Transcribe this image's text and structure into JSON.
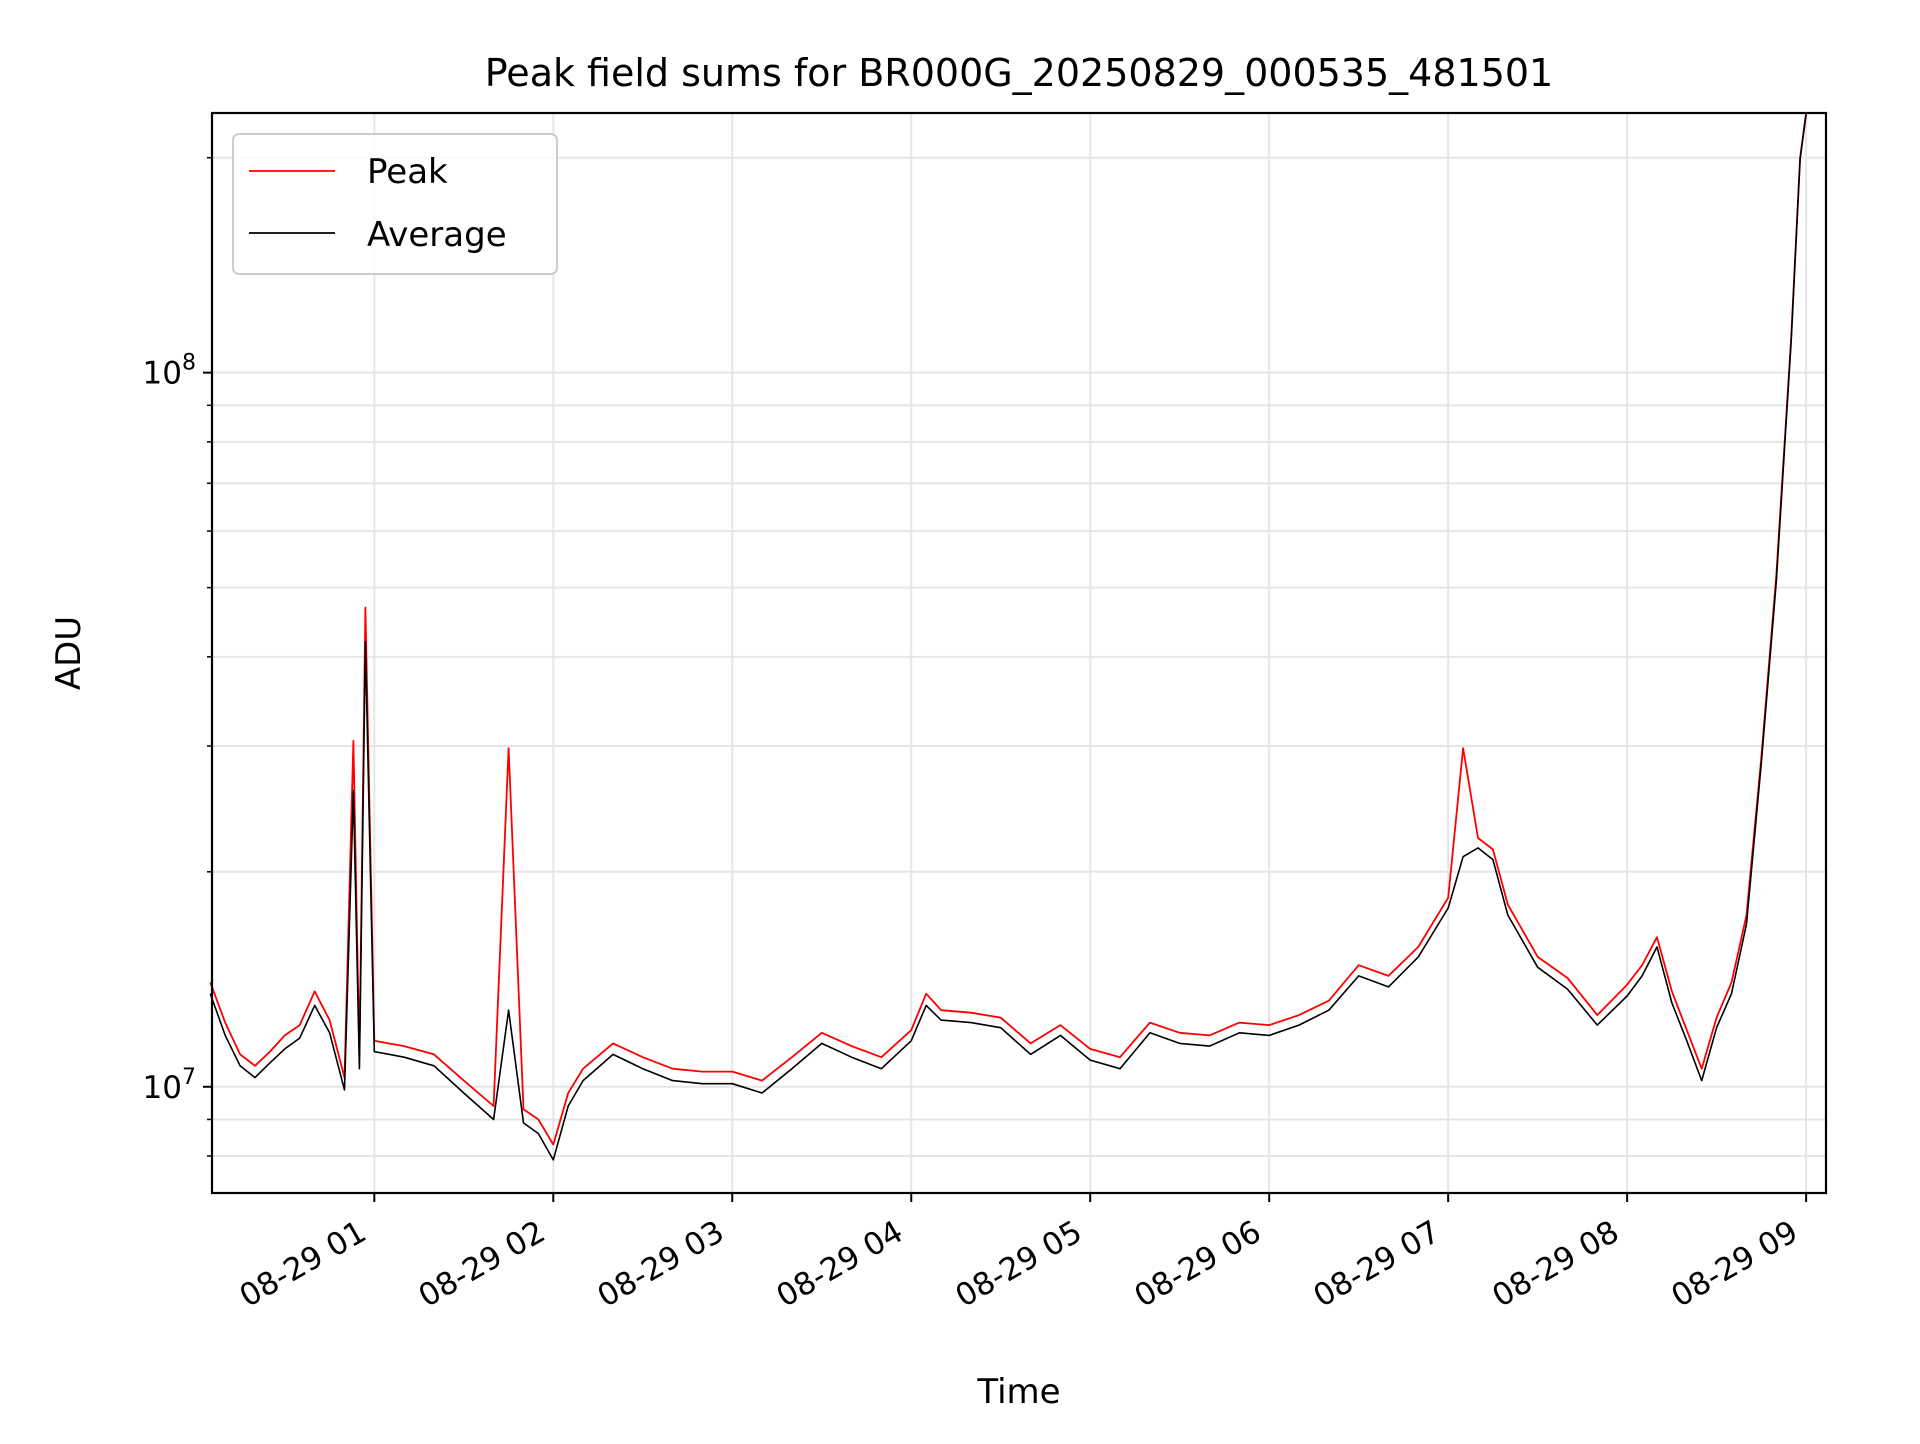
{
  "chart_data": {
    "type": "line",
    "title": "Peak field sums for BR000G_20250829_000535_481501",
    "xlabel": "Time",
    "ylabel": "ADU",
    "yscale": "log",
    "ylim": [
      7100000,
      231000000
    ],
    "xlim": [
      "2025-08-29 00:05:35",
      "2025-08-29 09:06:40"
    ],
    "x_ticks": [
      {
        "label": "08-29 01",
        "t": "2025-08-29 01:00"
      },
      {
        "label": "08-29 02",
        "t": "2025-08-29 02:00"
      },
      {
        "label": "08-29 03",
        "t": "2025-08-29 03:00"
      },
      {
        "label": "08-29 04",
        "t": "2025-08-29 04:00"
      },
      {
        "label": "08-29 05",
        "t": "2025-08-29 05:00"
      },
      {
        "label": "08-29 06",
        "t": "2025-08-29 06:00"
      },
      {
        "label": "08-29 07",
        "t": "2025-08-29 07:00"
      },
      {
        "label": "08-29 08",
        "t": "2025-08-29 08:00"
      },
      {
        "label": "08-29 09",
        "t": "2025-08-29 09:00"
      }
    ],
    "y_ticks": [
      {
        "base": "10",
        "exp": "7",
        "value": 10000000
      },
      {
        "base": "10",
        "exp": "8",
        "value": 100000000
      }
    ],
    "grid": true,
    "legend_position": "upper left",
    "x": [
      "00:05",
      "00:10",
      "00:15",
      "00:20",
      "00:25",
      "00:30",
      "00:35",
      "00:40",
      "00:45",
      "00:50",
      "00:53",
      "00:55",
      "00:57",
      "01:00",
      "01:10",
      "01:20",
      "01:30",
      "01:40",
      "01:45",
      "01:50",
      "01:55",
      "02:00",
      "02:05",
      "02:10",
      "02:20",
      "02:30",
      "02:40",
      "02:50",
      "03:00",
      "03:10",
      "03:20",
      "03:30",
      "03:40",
      "03:50",
      "04:00",
      "04:05",
      "04:10",
      "04:20",
      "04:30",
      "04:40",
      "04:50",
      "05:00",
      "05:10",
      "05:20",
      "05:30",
      "05:40",
      "05:50",
      "06:00",
      "06:10",
      "06:20",
      "06:30",
      "06:40",
      "06:50",
      "07:00",
      "07:05",
      "07:10",
      "07:15",
      "07:20",
      "07:30",
      "07:40",
      "07:50",
      "08:00",
      "08:05",
      "08:10",
      "08:15",
      "08:20",
      "08:25",
      "08:30",
      "08:35",
      "08:40",
      "08:45",
      "08:50",
      "08:55",
      "08:58",
      "09:00"
    ],
    "series": [
      {
        "name": "Peak",
        "color": "#ff0000",
        "values": [
          14000000,
          12300000,
          11100000,
          10700000,
          11200000,
          11800000,
          12200000,
          13600000,
          12400000,
          10300000,
          30500000,
          11000000,
          46900000,
          11600000,
          11400000,
          11100000,
          10200000,
          9400000,
          29800000,
          9300000,
          9000000,
          8300000,
          9800000,
          10600000,
          11500000,
          11000000,
          10600000,
          10500000,
          10500000,
          10200000,
          11000000,
          11900000,
          11400000,
          11000000,
          12000000,
          13500000,
          12800000,
          12700000,
          12500000,
          11500000,
          12200000,
          11300000,
          11000000,
          12300000,
          11900000,
          11800000,
          12300000,
          12200000,
          12600000,
          13200000,
          14800000,
          14300000,
          15700000,
          18400000,
          29800000,
          22300000,
          21500000,
          18000000,
          15200000,
          14200000,
          12600000,
          13900000,
          14800000,
          16200000,
          13600000,
          12000000,
          10600000,
          12500000,
          14000000,
          17400000,
          29000000,
          52000000,
          112000000,
          200000000,
          231000000
        ]
      },
      {
        "name": "Average",
        "color": "#000000",
        "values": [
          13500000,
          11800000,
          10700000,
          10300000,
          10800000,
          11300000,
          11700000,
          13000000,
          11900000,
          9900000,
          26000000,
          10600000,
          42000000,
          11200000,
          11000000,
          10700000,
          9800000,
          9000000,
          12800000,
          8900000,
          8600000,
          7900000,
          9400000,
          10200000,
          11100000,
          10600000,
          10200000,
          10100000,
          10100000,
          9800000,
          10600000,
          11500000,
          11000000,
          10600000,
          11600000,
          13000000,
          12400000,
          12300000,
          12100000,
          11100000,
          11800000,
          10900000,
          10600000,
          11900000,
          11500000,
          11400000,
          11900000,
          11800000,
          12200000,
          12800000,
          14300000,
          13800000,
          15200000,
          17800000,
          21000000,
          21600000,
          20800000,
          17400000,
          14700000,
          13700000,
          12200000,
          13400000,
          14300000,
          15700000,
          13100000,
          11600000,
          10200000,
          12100000,
          13500000,
          16900000,
          28500000,
          51000000,
          111000000,
          199000000,
          230000000
        ]
      }
    ]
  }
}
